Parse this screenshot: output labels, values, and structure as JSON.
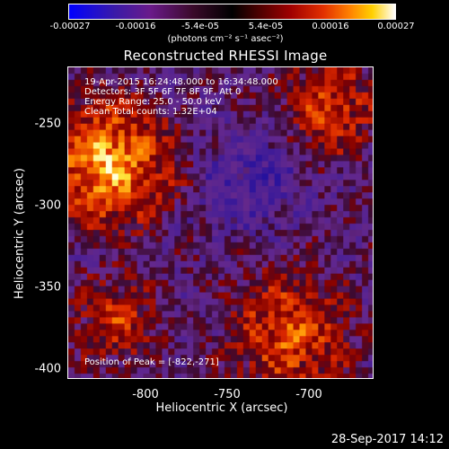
{
  "colorbar": {
    "ticks": [
      "-0.00027",
      "-0.00016",
      "-5.4e-05",
      "5.4e-05",
      "0.00016",
      "0.00027"
    ],
    "units": "(photons cm⁻² s⁻¹ asec⁻²)"
  },
  "title": "Reconstructed RHESSI Image",
  "info": {
    "line1": "19-Apr-2015 16:24:48.000 to 16:34:48.000",
    "line2": "Detectors: 3F 5F 6F 7F 8F 9F, Att 0",
    "line3": "Energy Range: 25.0 - 50.0 keV",
    "line4": "Clean    Total counts: 1.32E+04"
  },
  "peak": "Position of Peak = [-822,-271]",
  "axes": {
    "ylabel": "Heliocentric Y (arcsec)",
    "xlabel": "Heliocentric X (arcsec)",
    "yticks": [
      "-250",
      "-300",
      "-350",
      "-400"
    ],
    "xticks": [
      "-800",
      "-750",
      "-700"
    ]
  },
  "timestamp": "28-Sep-2017 14:12"
}
